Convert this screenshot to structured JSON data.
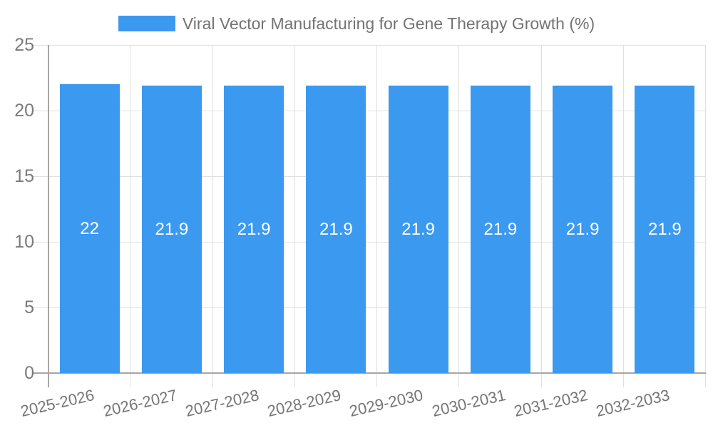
{
  "legend": {
    "label": "Viral Vector Manufacturing for Gene Therapy Growth (%)"
  },
  "chart_data": {
    "type": "bar",
    "title": "Viral Vector Manufacturing for Gene Therapy Growth (%)",
    "categories": [
      "2025-2026",
      "2026-2027",
      "2027-2028",
      "2028-2029",
      "2029-2030",
      "2030-2031",
      "2031-2032",
      "2032-2033"
    ],
    "values": [
      22,
      21.9,
      21.9,
      21.9,
      21.9,
      21.9,
      21.9,
      21.9
    ],
    "value_labels": [
      "22",
      "21.9",
      "21.9",
      "21.9",
      "21.9",
      "21.9",
      "21.9",
      "21.9"
    ],
    "xlabel": "",
    "ylabel": "",
    "ylim": [
      0,
      25
    ],
    "yticks": [
      0,
      5,
      10,
      15,
      20,
      25
    ],
    "ytick_labels": [
      "0",
      "5",
      "10",
      "15",
      "20",
      "25"
    ],
    "grid": true,
    "legend_position": "top-center",
    "colors": {
      "bar": "#3b99f0",
      "bar_label": "#ffffff",
      "axis_line": "#a6a6a6",
      "grid_line": "#e0e0e0",
      "y_tick_text": "#7a7a7a",
      "x_tick_text": "#757575",
      "legend_text": "#737373",
      "background": "#ffffff"
    }
  }
}
